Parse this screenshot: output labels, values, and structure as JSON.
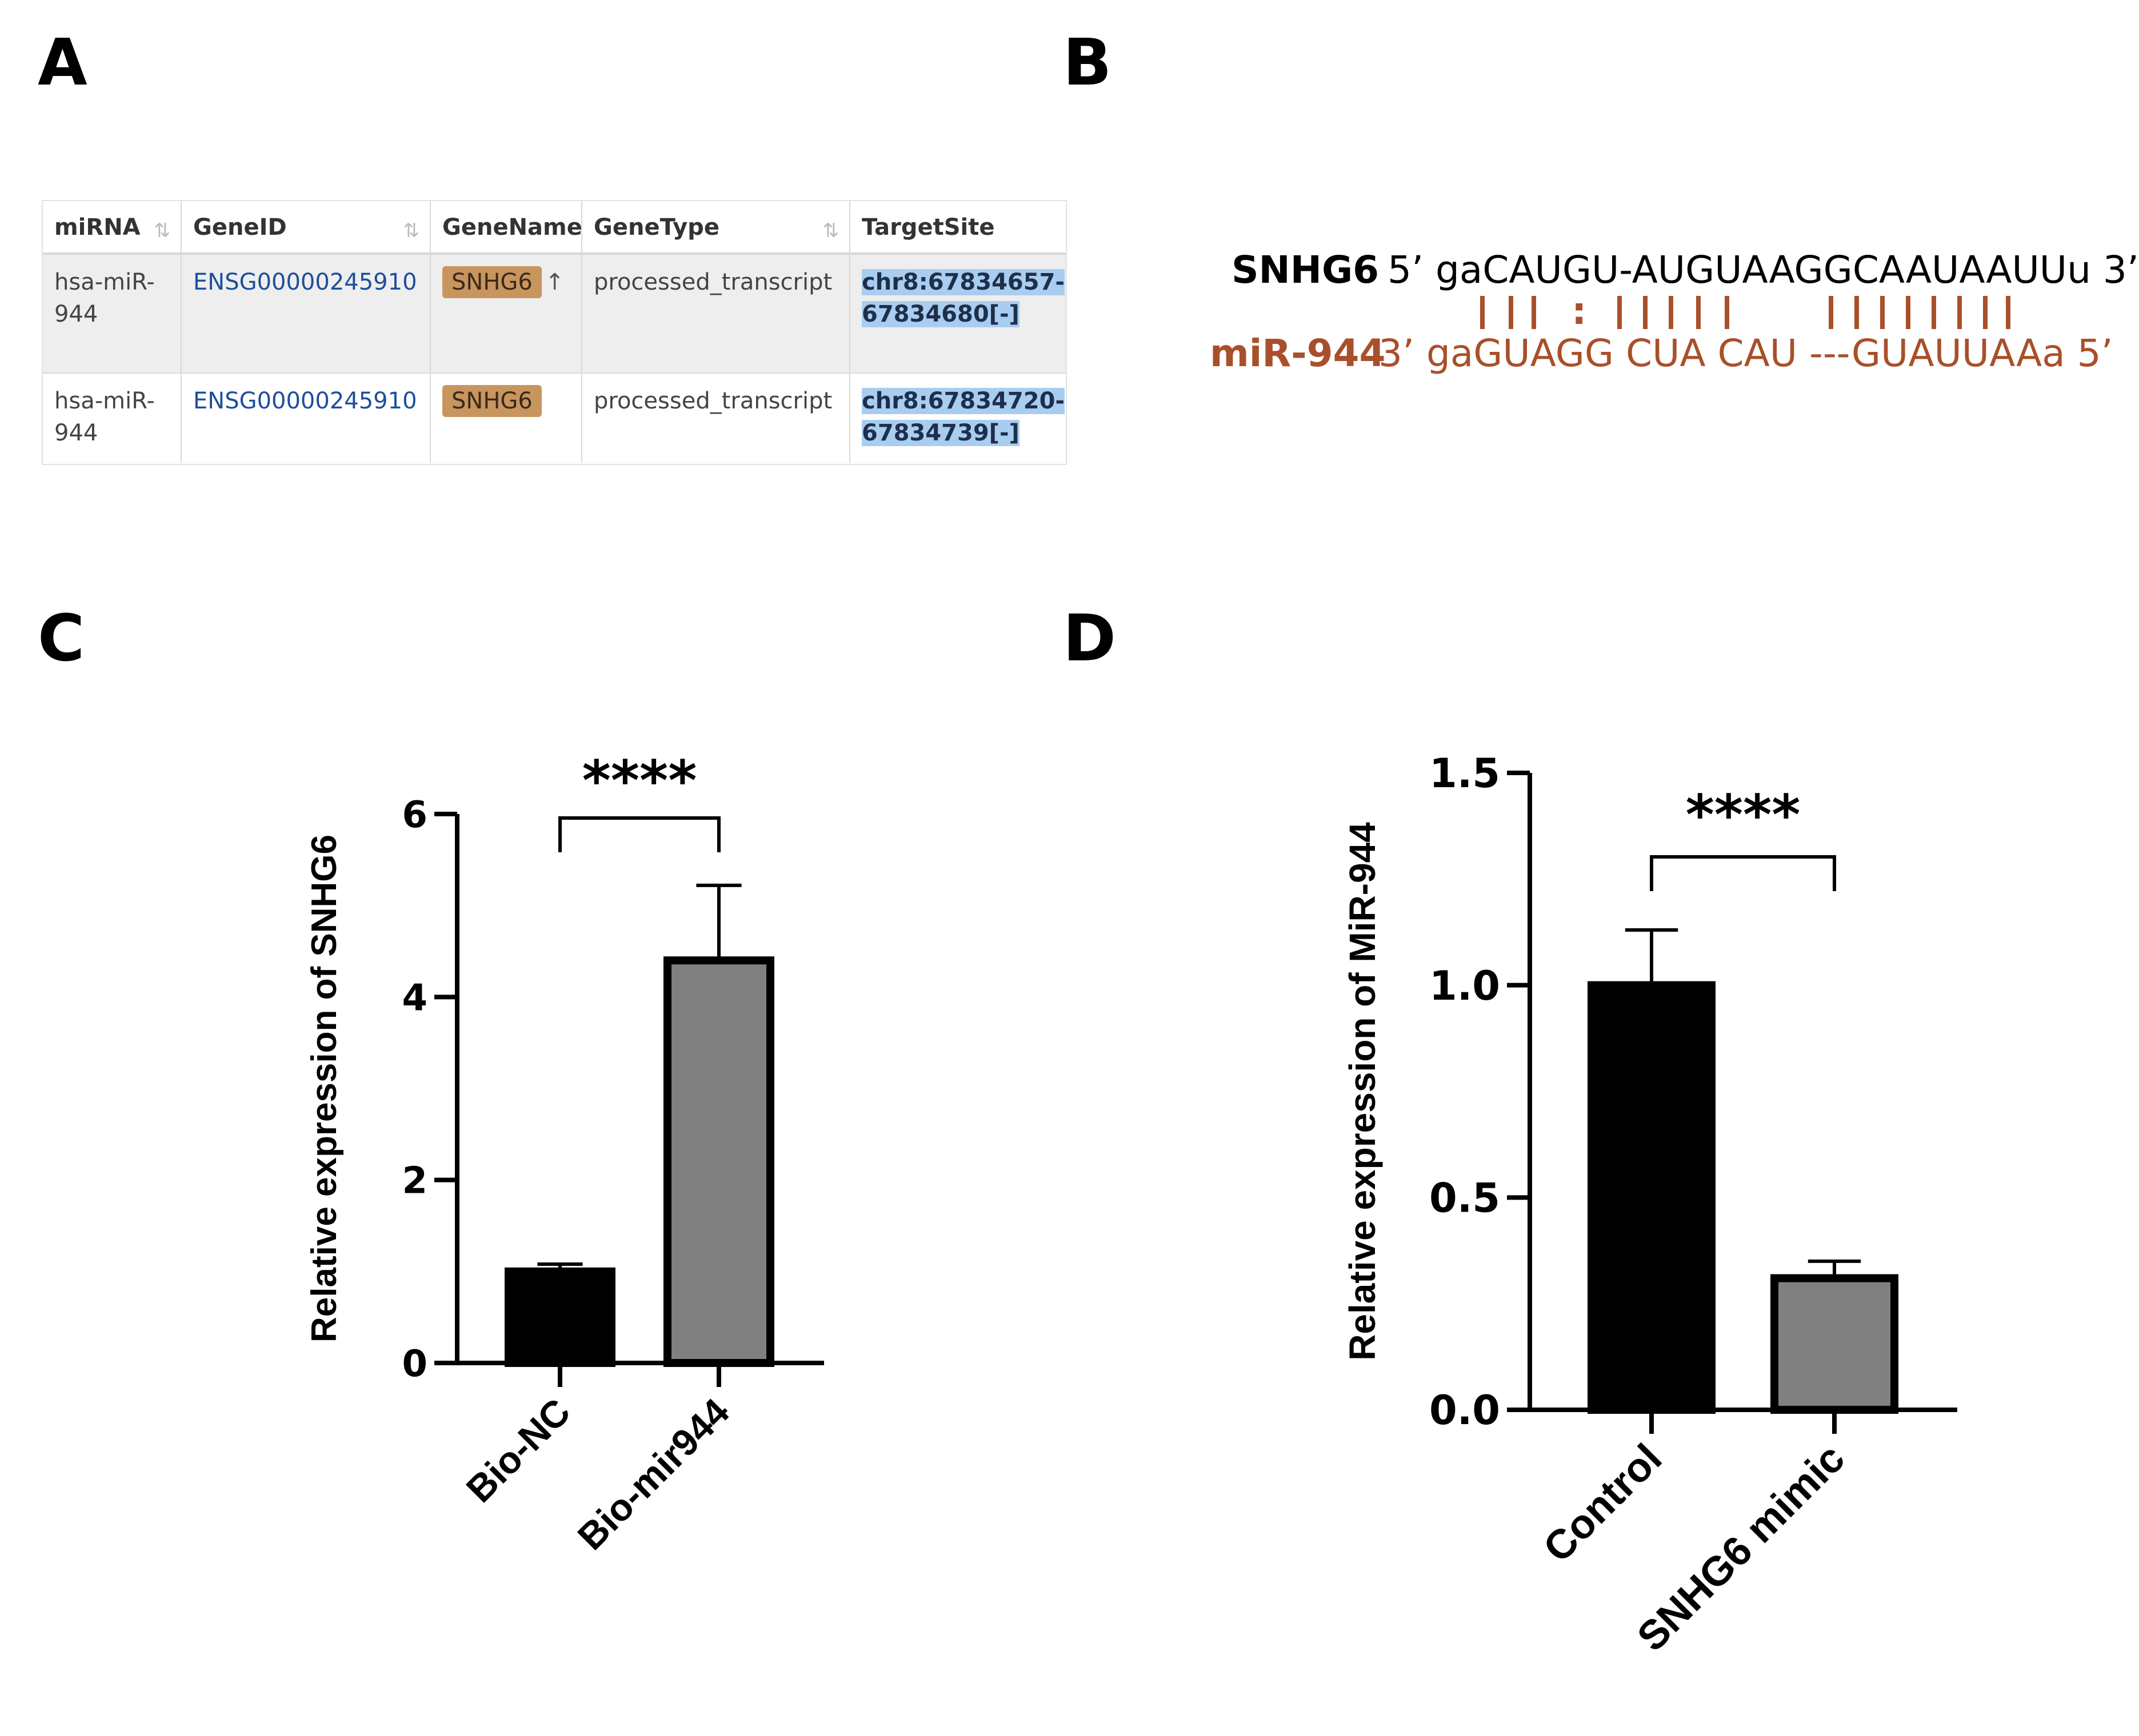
{
  "panels": {
    "a": "A",
    "b": "B",
    "c": "C",
    "d": "D"
  },
  "table": {
    "headers": [
      "miRNA",
      "GeneID",
      "GeneName",
      "GeneType",
      "TargetSite"
    ],
    "rows": [
      {
        "mirna_line1": "hsa-miR-",
        "mirna_line2": "944",
        "gene_id": "ENSG00000245910",
        "gene_name": "SNHG6",
        "gene_type": "processed_transcript",
        "site_line1": "chr8:67834657-",
        "site_line2": "67834680[-]"
      },
      {
        "mirna_line1": "hsa-miR-",
        "mirna_line2": "944",
        "gene_id": "ENSG00000245910",
        "gene_name": "SNHG6",
        "gene_type": "processed_transcript",
        "site_line1": "chr8:67834720-",
        "site_line2": "67834739[-]"
      }
    ],
    "colors": {
      "badge": "#c9955f",
      "site_highlight": "#a9cdf0",
      "link": "#1d4f9c"
    }
  },
  "alignment": {
    "target_name": "SNHG6",
    "target_seq": "5’ gaCAUGU-AUGUAAGGCAAUAAUUu 3’",
    "mirna_name": "miR-944",
    "mirna_seq": "3’ gaGUAGG CUA CAU ---GUAUUAAa 5’",
    "wobble": ":",
    "mirna_color": "#a8502a"
  },
  "chart_data": [
    {
      "type": "bar",
      "panel": "C",
      "categories": [
        "Bio-NC",
        "Bio-mir944"
      ],
      "values": [
        1.0,
        4.4
      ],
      "errors": [
        0.08,
        0.82
      ],
      "colors": [
        "#000000",
        "#808080"
      ],
      "ylabel": "Relative expression of SNHG6",
      "ylim": [
        0,
        6
      ],
      "yticks": [
        "0",
        "2",
        "4",
        "6"
      ],
      "ytick_values": [
        0,
        2,
        4,
        6
      ],
      "significance": "****"
    },
    {
      "type": "bar",
      "panel": "D",
      "categories": [
        "Control",
        "SNHG6 mimic"
      ],
      "values": [
        1.0,
        0.31
      ],
      "errors": [
        0.13,
        0.04
      ],
      "colors": [
        "#000000",
        "#808080"
      ],
      "ylabel": "Relative expression of MiR-944",
      "ylim": [
        0,
        1.5
      ],
      "yticks": [
        "0.0",
        "0.5",
        "1.0",
        "1.5"
      ],
      "ytick_values": [
        0,
        0.5,
        1.0,
        1.5
      ],
      "significance": "****"
    }
  ]
}
